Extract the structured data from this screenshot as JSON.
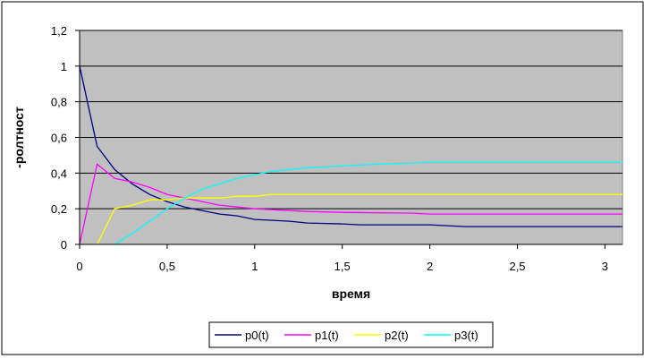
{
  "chart_data": {
    "type": "line",
    "title": "",
    "xlabel": "время",
    "ylabel": "-ролтност",
    "xlim": [
      0,
      3.1
    ],
    "ylim": [
      0,
      1.2
    ],
    "x_ticks": [
      "0",
      "0,5",
      "1",
      "1,5",
      "2",
      "2,5",
      "3"
    ],
    "y_ticks": [
      "0",
      "0,2",
      "0,4",
      "0,6",
      "0,8",
      "1",
      "1,2"
    ],
    "grid": "horizontal",
    "plot_background": "#c0c0c0",
    "legend_position": "bottom",
    "series": [
      {
        "name": "p0(t)",
        "color": "#000080",
        "points": [
          [
            0,
            1.0
          ],
          [
            0.1,
            0.55
          ],
          [
            0.2,
            0.42
          ],
          [
            0.3,
            0.34
          ],
          [
            0.4,
            0.28
          ],
          [
            0.5,
            0.24
          ],
          [
            0.6,
            0.21
          ],
          [
            0.7,
            0.19
          ],
          [
            0.8,
            0.17
          ],
          [
            0.9,
            0.16
          ],
          [
            1.0,
            0.14
          ],
          [
            1.2,
            0.13
          ],
          [
            1.3,
            0.12
          ],
          [
            1.5,
            0.115
          ],
          [
            1.6,
            0.11
          ],
          [
            1.8,
            0.11
          ],
          [
            2.0,
            0.11
          ],
          [
            2.1,
            0.105
          ],
          [
            2.2,
            0.1
          ],
          [
            3.1,
            0.1
          ]
        ]
      },
      {
        "name": "p1(t)",
        "color": "#ff00ff",
        "points": [
          [
            0,
            0
          ],
          [
            0.1,
            0.45
          ],
          [
            0.2,
            0.37
          ],
          [
            0.3,
            0.35
          ],
          [
            0.4,
            0.32
          ],
          [
            0.5,
            0.28
          ],
          [
            0.6,
            0.26
          ],
          [
            0.7,
            0.24
          ],
          [
            0.8,
            0.22
          ],
          [
            0.9,
            0.21
          ],
          [
            1.0,
            0.2
          ],
          [
            1.2,
            0.19
          ],
          [
            1.3,
            0.185
          ],
          [
            1.5,
            0.18
          ],
          [
            1.9,
            0.175
          ],
          [
            2.0,
            0.17
          ],
          [
            3.1,
            0.17
          ]
        ]
      },
      {
        "name": "p2(t)",
        "color": "#ffff00",
        "points": [
          [
            0.1,
            0
          ],
          [
            0.2,
            0.2
          ],
          [
            0.3,
            0.22
          ],
          [
            0.4,
            0.25
          ],
          [
            0.5,
            0.25
          ],
          [
            0.6,
            0.26
          ],
          [
            0.7,
            0.26
          ],
          [
            0.8,
            0.26
          ],
          [
            0.9,
            0.27
          ],
          [
            1.0,
            0.27
          ],
          [
            1.1,
            0.28
          ],
          [
            3.1,
            0.28
          ]
        ]
      },
      {
        "name": "p3(t)",
        "color": "#00ffff",
        "points": [
          [
            0.2,
            0
          ],
          [
            0.3,
            0.06
          ],
          [
            0.4,
            0.13
          ],
          [
            0.5,
            0.2
          ],
          [
            0.6,
            0.26
          ],
          [
            0.7,
            0.31
          ],
          [
            0.8,
            0.34
          ],
          [
            0.9,
            0.37
          ],
          [
            1.0,
            0.39
          ],
          [
            1.1,
            0.41
          ],
          [
            1.2,
            0.42
          ],
          [
            1.3,
            0.43
          ],
          [
            1.5,
            0.44
          ],
          [
            1.7,
            0.45
          ],
          [
            2.0,
            0.46
          ],
          [
            3.1,
            0.46
          ]
        ]
      }
    ]
  }
}
